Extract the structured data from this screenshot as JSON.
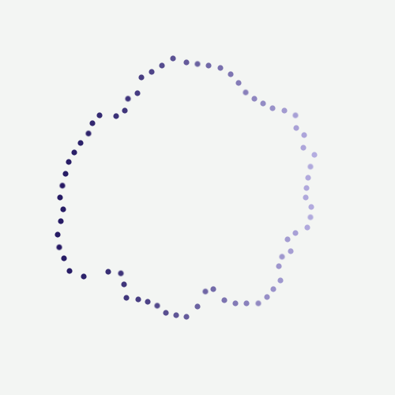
{
  "figure": {
    "kind": "dotted closed loop",
    "background_color": "#f3f5f3",
    "gradient_start_color": "#1a0f5c",
    "gradient_end_color": "#9a8fd8",
    "dot_count": 72
  }
}
